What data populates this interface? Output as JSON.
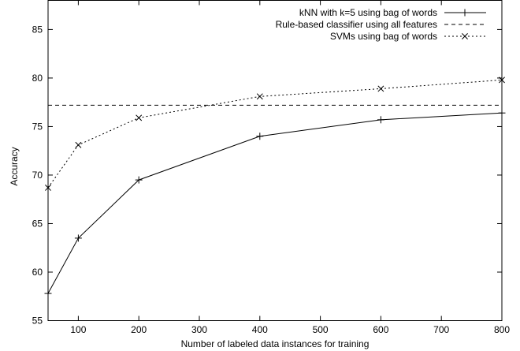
{
  "chart_data": {
    "type": "line",
    "xlabel": "Number of labeled data instances for training",
    "ylabel": "Accuracy",
    "xlim": [
      50,
      800
    ],
    "ylim": [
      55,
      88
    ],
    "xticks": [
      100,
      200,
      300,
      400,
      500,
      600,
      700,
      800
    ],
    "yticks": [
      55,
      60,
      65,
      70,
      75,
      80,
      85
    ],
    "xtick_labels": [
      "100",
      "200",
      "300",
      "400",
      "500",
      "600",
      "700",
      "800"
    ],
    "ytick_labels": [
      "55",
      "60",
      "65",
      "70",
      "75",
      "80",
      "85"
    ],
    "grid": false,
    "legend_position": "top-right",
    "series": [
      {
        "name": "kNN with k=5 using bag of words",
        "style": "solid",
        "marker": "plus",
        "x": [
          50,
          100,
          200,
          400,
          600,
          800
        ],
        "y": [
          57.8,
          63.5,
          69.5,
          74.0,
          75.7,
          76.4
        ]
      },
      {
        "name": "Rule-based classifier using all features",
        "style": "dashed",
        "marker": "none",
        "x": [
          50,
          800
        ],
        "y": [
          77.2,
          77.2
        ]
      },
      {
        "name": "SVMs using bag of words",
        "style": "dotted",
        "marker": "cross",
        "x": [
          50,
          100,
          200,
          400,
          600,
          800
        ],
        "y": [
          68.7,
          73.1,
          75.9,
          78.1,
          78.9,
          79.8
        ]
      }
    ]
  }
}
